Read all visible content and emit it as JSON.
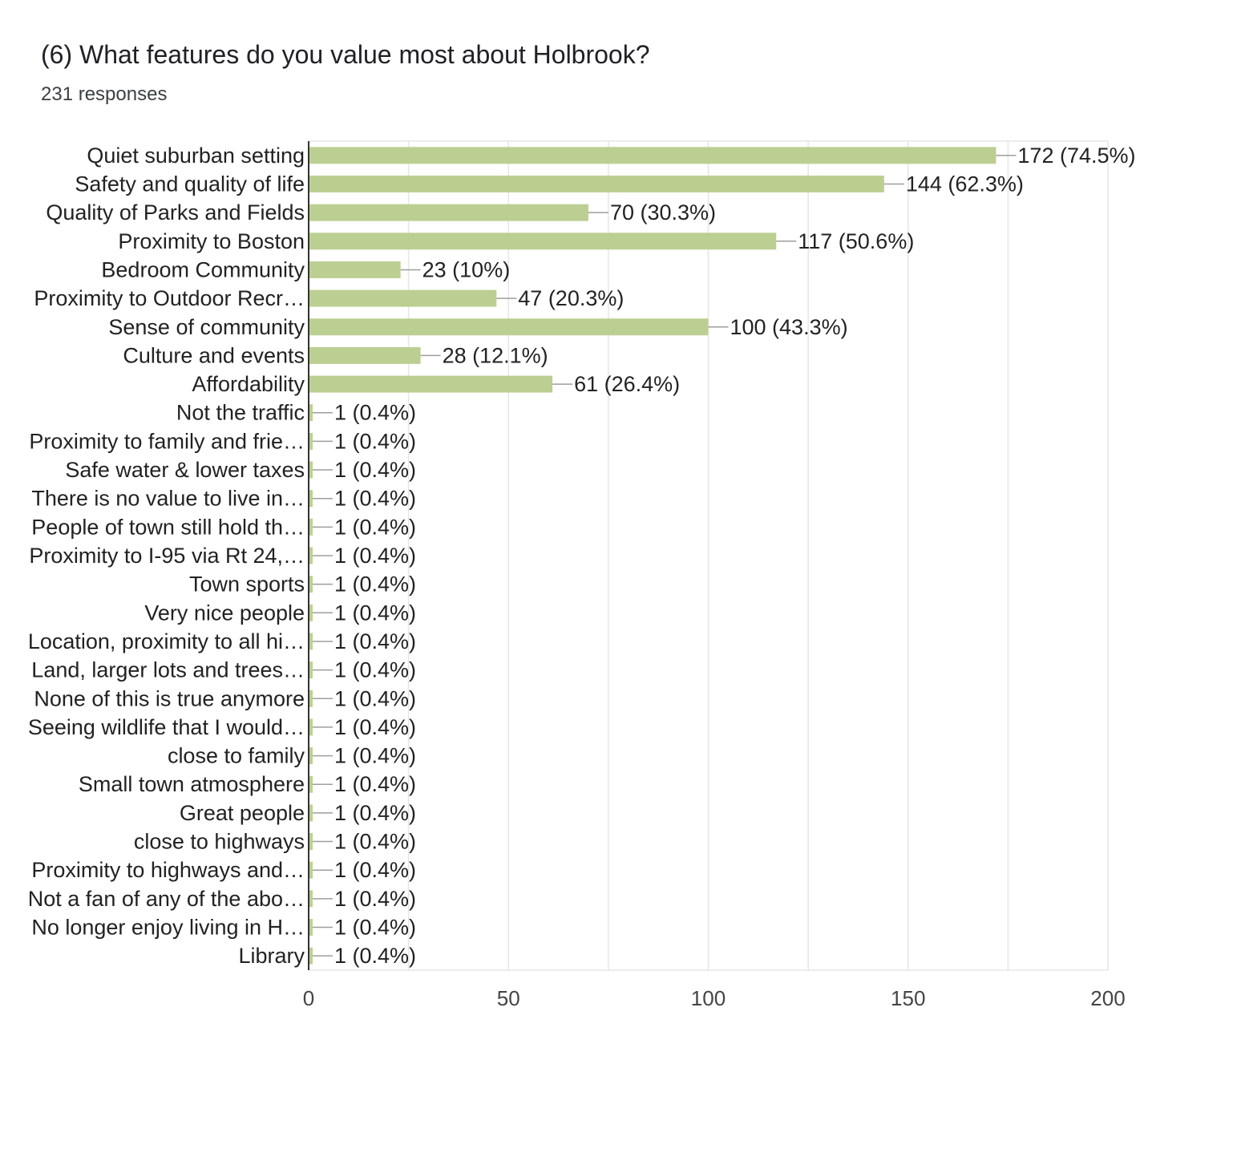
{
  "header": {
    "title": "(6) What features do you value most about Holbrook?",
    "responses": "231 responses"
  },
  "colors": {
    "bar": "#bccf92",
    "grid": "#e6e6e6",
    "axis": "#333333",
    "leader": "#9e9e9e"
  },
  "chart_data": {
    "type": "bar",
    "orientation": "horizontal",
    "categories": [
      "Quiet suburban setting",
      "Safety and quality of life",
      "Quality of Parks and Fields",
      "Proximity to Boston",
      "Bedroom Community",
      "Proximity to Outdoor Recr…",
      "Sense of community",
      "Culture and events",
      "Affordability",
      "Not the traffic",
      "Proximity to family and frie…",
      "Safe water & lower taxes",
      "There is no value to live in…",
      "People of town still hold th…",
      "Proximity to I-95 via Rt 24,…",
      "Town sports",
      "Very nice people",
      "Location, proximity to all hi…",
      "Land, larger lots and trees…",
      "None of this is true anymore",
      "Seeing wildlife that I would…",
      "close to family",
      "Small town atmosphere",
      "Great people",
      "close to highways",
      "Proximity to highways and…",
      "Not a fan of any of the abo…",
      "No longer enjoy living in H…",
      "Library"
    ],
    "values": [
      172,
      144,
      70,
      117,
      23,
      47,
      100,
      28,
      61,
      1,
      1,
      1,
      1,
      1,
      1,
      1,
      1,
      1,
      1,
      1,
      1,
      1,
      1,
      1,
      1,
      1,
      1,
      1,
      1
    ],
    "data_labels": [
      "172 (74.5%)",
      "144 (62.3%)",
      "70 (30.3%)",
      "117 (50.6%)",
      "23 (10%)",
      "47 (20.3%)",
      "100 (43.3%)",
      "28 (12.1%)",
      "61 (26.4%)",
      "1 (0.4%)",
      "1 (0.4%)",
      "1 (0.4%)",
      "1 (0.4%)",
      "1 (0.4%)",
      "1 (0.4%)",
      "1 (0.4%)",
      "1 (0.4%)",
      "1 (0.4%)",
      "1 (0.4%)",
      "1 (0.4%)",
      "1 (0.4%)",
      "1 (0.4%)",
      "1 (0.4%)",
      "1 (0.4%)",
      "1 (0.4%)",
      "1 (0.4%)",
      "1 (0.4%)",
      "1 (0.4%)",
      "1 (0.4%)"
    ],
    "xlim": [
      0,
      200
    ],
    "xticks": [
      0,
      50,
      100,
      150,
      200
    ],
    "grid": true
  }
}
